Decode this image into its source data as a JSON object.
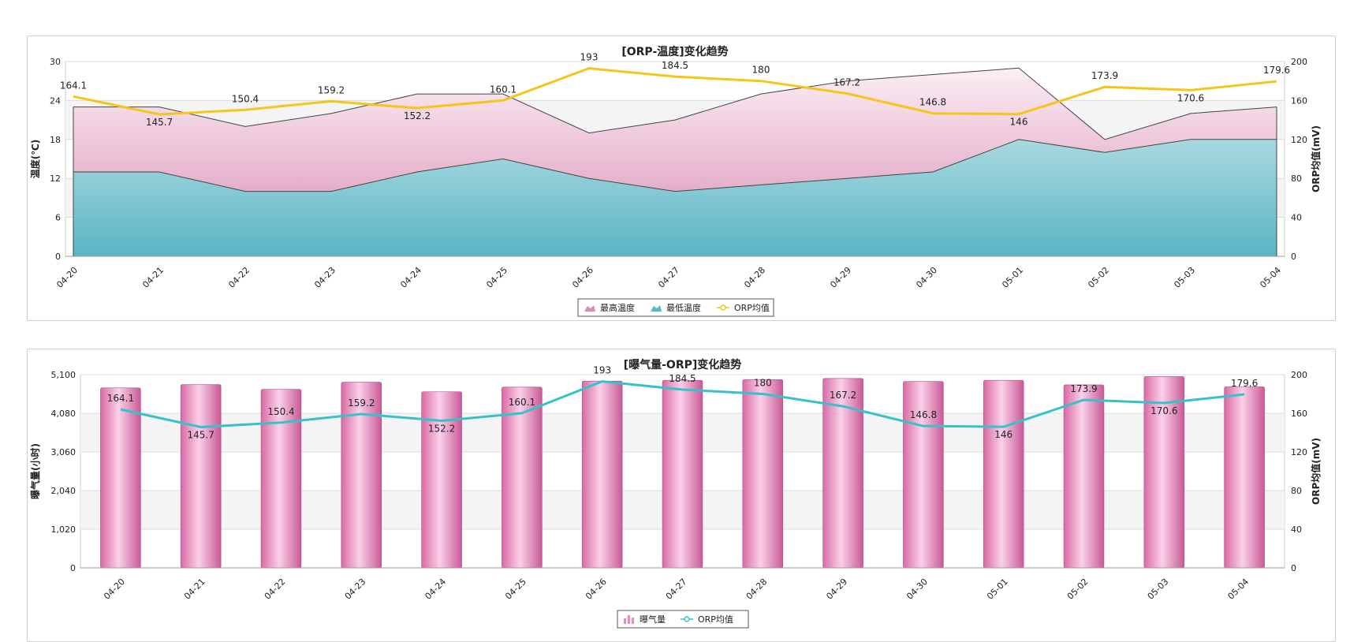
{
  "chart_data": [
    {
      "type": "area",
      "title": "[ORP-温度]变化趋势",
      "ylabel": "温度(℃)",
      "y2label": "ORP均值(mV)",
      "ylim": [
        0,
        30
      ],
      "y2lim": [
        0,
        200
      ],
      "yticks": [
        "0",
        "6",
        "12",
        "18",
        "24",
        "30"
      ],
      "y2ticks": [
        "0",
        "40",
        "80",
        "120",
        "160",
        "200"
      ],
      "categories": [
        "04-20",
        "04-21",
        "04-22",
        "04-23",
        "04-24",
        "04-25",
        "04-26",
        "04-27",
        "04-28",
        "04-29",
        "04-30",
        "05-01",
        "05-02",
        "05-03",
        "05-04"
      ],
      "series": [
        {
          "name": "最高温度",
          "type": "area",
          "color": "#d98cb3",
          "values": [
            23,
            23,
            20,
            22,
            25,
            25,
            19,
            21,
            25,
            27,
            28,
            29,
            18,
            22,
            23
          ]
        },
        {
          "name": "最低温度",
          "type": "area",
          "color": "#5ab5c4",
          "values": [
            13,
            13,
            10,
            10,
            13,
            15,
            12,
            10,
            11,
            12,
            13,
            18,
            16,
            18,
            18
          ]
        },
        {
          "name": "ORP均值",
          "type": "line",
          "axis": "right",
          "color": "#f5c518",
          "values": [
            164.1,
            145.7,
            150.4,
            159.2,
            152.2,
            160.1,
            193,
            184.5,
            180,
            167.2,
            146.8,
            146,
            173.9,
            170.6,
            179.6
          ],
          "labels": [
            "164.1",
            "145.7",
            "150.4",
            "159.2",
            "152.2",
            "160.1",
            "193",
            "184.5",
            "180",
            "167.2",
            "146.8",
            "146",
            "173.9",
            "170.6",
            "179.6"
          ]
        }
      ],
      "legend": "bottom-center",
      "grid": true
    },
    {
      "type": "bar",
      "title": "[曝气量-ORP]变化趋势",
      "ylabel": "曝气量(小时)",
      "y2label": "ORP均值(mV)",
      "ylim": [
        0,
        5100
      ],
      "y2lim": [
        0,
        200
      ],
      "yticks": [
        "0",
        "1,020",
        "2,040",
        "3,060",
        "4,080",
        "5,100"
      ],
      "y2ticks": [
        "0",
        "40",
        "80",
        "120",
        "160",
        "200"
      ],
      "categories": [
        "04-20",
        "04-21",
        "04-22",
        "04-23",
        "04-24",
        "04-25",
        "04-26",
        "04-27",
        "04-28",
        "04-29",
        "04-30",
        "05-01",
        "05-02",
        "05-03",
        "05-04"
      ],
      "series": [
        {
          "name": "曝气量",
          "type": "bar",
          "color": "#e98cc0",
          "values": [
            4750,
            4840,
            4710,
            4900,
            4650,
            4770,
            4930,
            4950,
            4970,
            5000,
            4920,
            4950,
            4830,
            5050,
            4780
          ]
        },
        {
          "name": "ORP均值",
          "type": "line",
          "axis": "right",
          "color": "#36c2c8",
          "values": [
            164.1,
            145.7,
            150.4,
            159.2,
            152.2,
            160.1,
            193,
            184.5,
            180,
            167.2,
            146.8,
            146,
            173.9,
            170.6,
            179.6
          ],
          "labels": [
            "164.1",
            "145.7",
            "150.4",
            "159.2",
            "152.2",
            "160.1",
            "193",
            "184.5",
            "180",
            "167.2",
            "146.8",
            "146",
            "173.9",
            "170.6",
            "179.6"
          ]
        }
      ],
      "legend": "bottom-center",
      "grid": true
    }
  ]
}
